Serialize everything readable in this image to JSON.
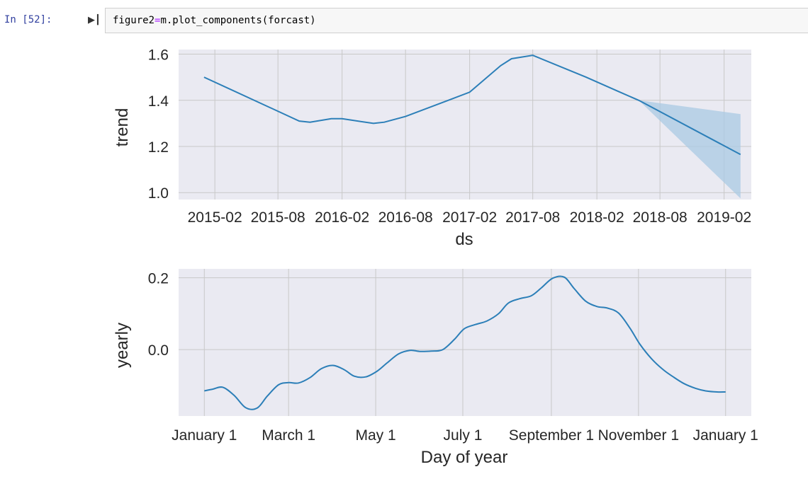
{
  "cell": {
    "prompt": "In [52]:",
    "code_lhs": "figure2",
    "code_op": "=",
    "code_rhs": "m.plot_components(forcast)"
  },
  "colors": {
    "plot_bg": "#eaeaf2",
    "line": "#2c7fb8",
    "band": "#a9c9e3",
    "grid": "#c8c8c8",
    "code_bg": "#f7f7f7",
    "prompt": "#303F9F",
    "operator": "#AA22FF"
  },
  "chart_data": [
    {
      "type": "line",
      "title": "",
      "xlabel": "ds",
      "ylabel": "trend",
      "x_ticks": [
        "2015-02",
        "2015-08",
        "2016-02",
        "2016-08",
        "2017-02",
        "2017-08",
        "2018-02",
        "2018-08",
        "2019-02"
      ],
      "y_ticks": [
        "1.0",
        "1.2",
        "1.4",
        "1.6"
      ],
      "ylim": [
        0.97,
        1.62
      ],
      "xlim": [
        "2014-10-20",
        "2019-04-20"
      ],
      "grid": true,
      "series": [
        {
          "x": [
            "2015-01-01",
            "2015-10-01",
            "2015-11-01",
            "2016-01-01",
            "2016-02-01",
            "2016-05-01",
            "2016-06-01",
            "2016-08-01",
            "2017-02-01",
            "2017-05-01",
            "2017-06-01",
            "2017-08-01",
            "2018-01-01",
            "2018-04-01",
            "2018-06-01",
            "2019-03-20"
          ],
          "y": [
            1.5,
            1.31,
            1.305,
            1.32,
            1.32,
            1.3,
            1.305,
            1.33,
            1.435,
            1.55,
            1.58,
            1.595,
            1.5,
            1.44,
            1.4,
            1.165
          ],
          "lower": [
            1.5,
            1.31,
            1.305,
            1.32,
            1.32,
            1.3,
            1.305,
            1.33,
            1.435,
            1.55,
            1.58,
            1.595,
            1.5,
            1.44,
            1.4,
            0.975
          ],
          "upper": [
            1.5,
            1.31,
            1.305,
            1.32,
            1.32,
            1.3,
            1.305,
            1.33,
            1.435,
            1.55,
            1.58,
            1.595,
            1.5,
            1.44,
            1.4,
            1.34
          ]
        }
      ]
    },
    {
      "type": "line",
      "title": "",
      "xlabel": "Day of year",
      "ylabel": "yearly",
      "x_ticks": [
        "January 1",
        "March 1",
        "May 1",
        "July 1",
        "September 1",
        "November 1",
        "January 1"
      ],
      "x_tick_days": [
        0,
        59,
        120,
        181,
        243,
        304,
        365
      ],
      "y_ticks": [
        "0.0",
        "0.2"
      ],
      "y_tick_values": [
        0.0,
        0.2
      ],
      "ylim": [
        -0.185,
        0.225
      ],
      "xlim": [
        -18,
        383
      ],
      "grid": true,
      "series": [
        {
          "x": [
            0,
            6,
            13,
            21,
            29,
            37,
            44,
            52,
            59,
            66,
            74,
            82,
            90,
            98,
            105,
            113,
            121,
            128,
            136,
            144,
            151,
            159,
            167,
            175,
            182,
            190,
            198,
            206,
            213,
            221,
            229,
            236,
            244,
            252,
            259,
            267,
            275,
            282,
            290,
            298,
            305,
            313,
            321,
            328,
            336,
            344,
            351,
            359,
            365
          ],
          "y": [
            -0.115,
            -0.11,
            -0.105,
            -0.128,
            -0.162,
            -0.163,
            -0.13,
            -0.098,
            -0.092,
            -0.093,
            -0.078,
            -0.053,
            -0.044,
            -0.056,
            -0.074,
            -0.076,
            -0.06,
            -0.037,
            -0.012,
            -0.002,
            -0.005,
            -0.004,
            0.0,
            0.028,
            0.058,
            0.07,
            0.08,
            0.1,
            0.13,
            0.142,
            0.15,
            0.172,
            0.199,
            0.202,
            0.17,
            0.135,
            0.12,
            0.116,
            0.102,
            0.06,
            0.015,
            -0.025,
            -0.055,
            -0.075,
            -0.095,
            -0.108,
            -0.115,
            -0.118,
            -0.118
          ]
        }
      ]
    }
  ]
}
